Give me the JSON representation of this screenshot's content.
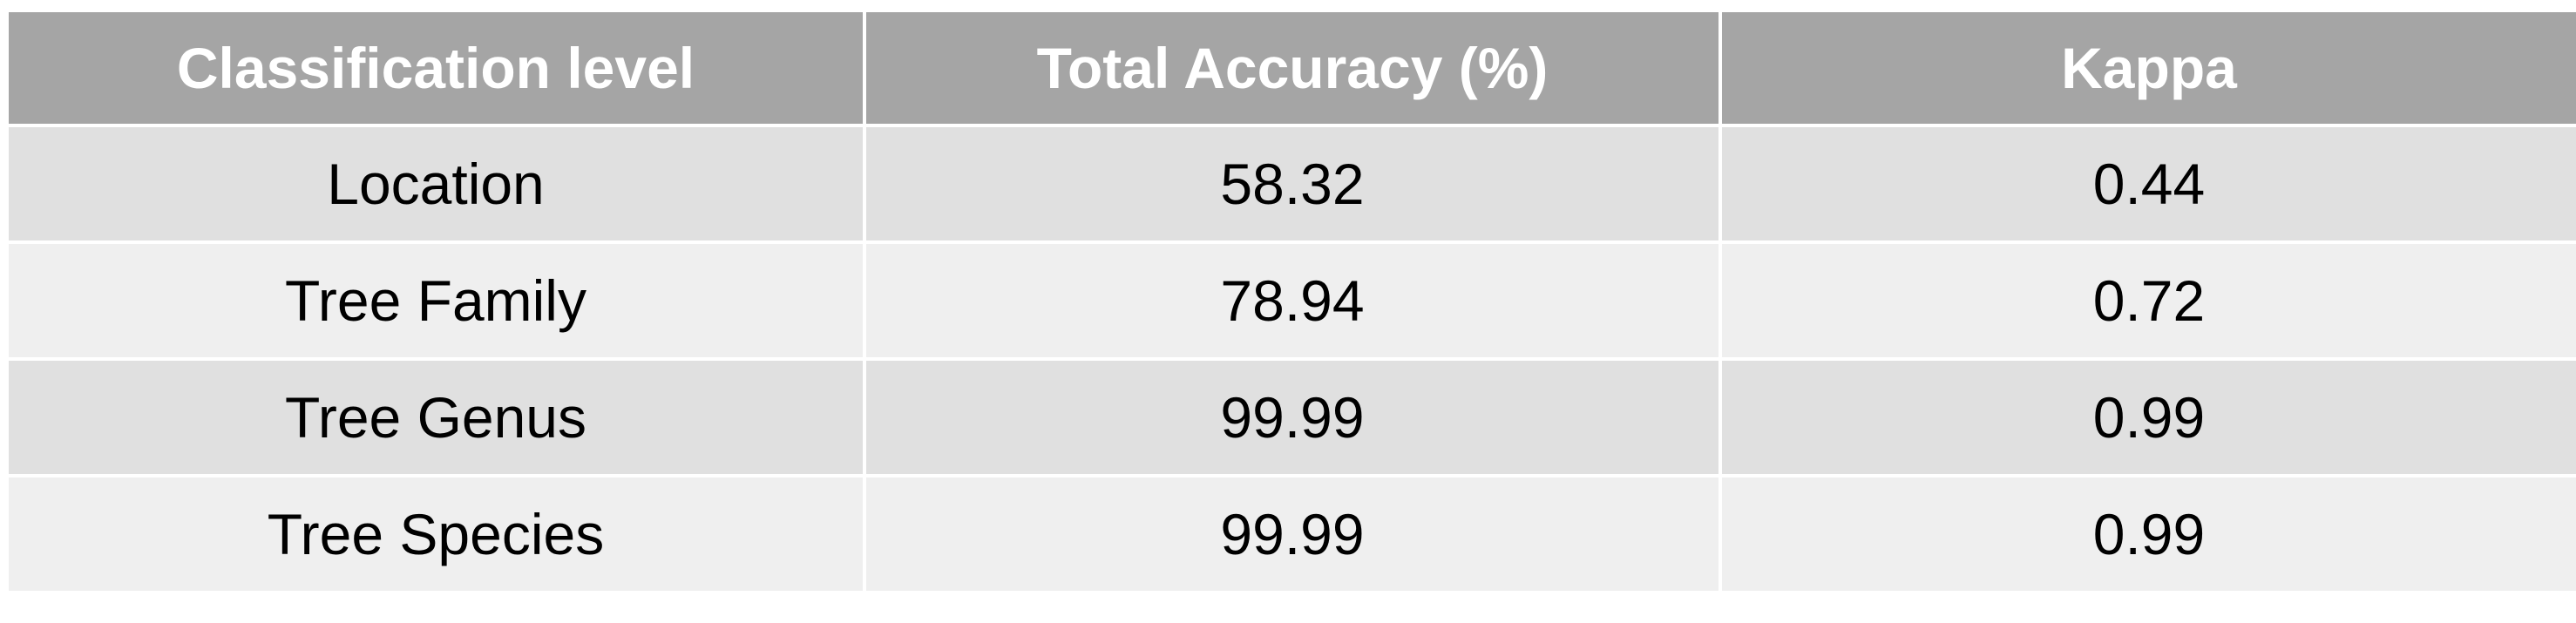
{
  "chart_data": {
    "type": "table",
    "columns": [
      "Classification level",
      "Total Accuracy (%)",
      "Kappa"
    ],
    "rows": [
      [
        "Location",
        "58.32",
        "0.44"
      ],
      [
        "Tree Family",
        "78.94",
        "0.72"
      ],
      [
        "Tree Genus",
        "99.99",
        "0.99"
      ],
      [
        "Tree Species",
        "99.99",
        "0.99"
      ]
    ]
  },
  "colors": {
    "header_bg": "#a5a5a5",
    "header_text": "#ffffff",
    "row_odd_bg": "#e0e0e0",
    "row_even_bg": "#efefef",
    "cell_text": "#000000"
  }
}
